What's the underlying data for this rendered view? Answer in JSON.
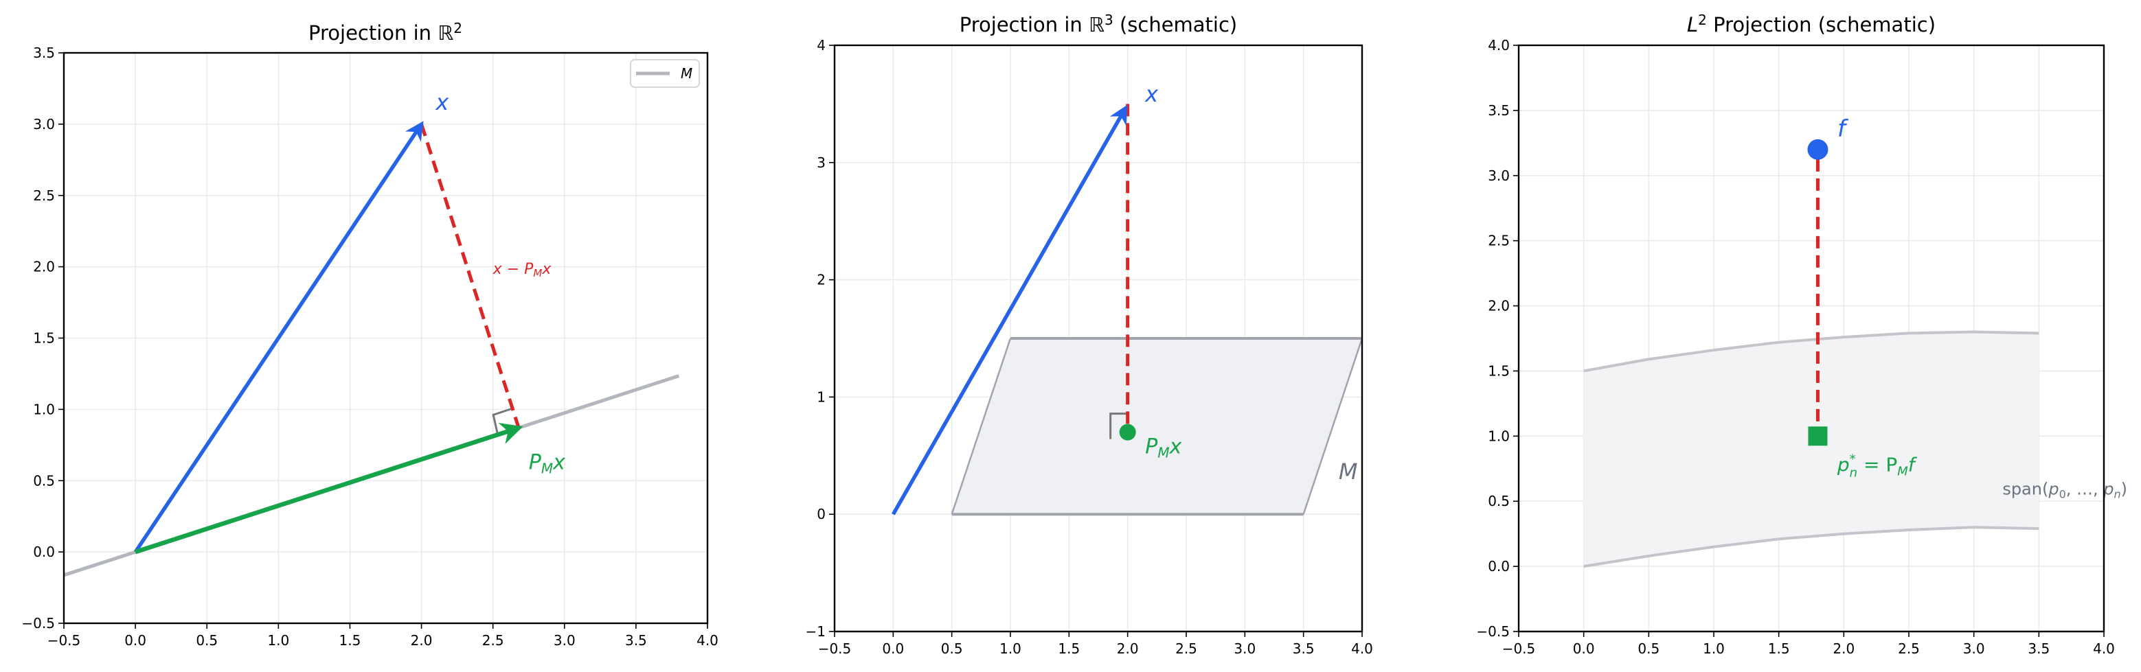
{
  "colors": {
    "blue": "#2563eb",
    "green": "#16a34a",
    "red": "#dc2626",
    "subspace": "#b4b6be",
    "plane_fill": "#eef0f3",
    "plane_edge": "#a1a4ad",
    "label_gray": "#6b7280",
    "right_angle": "#777777"
  },
  "chart_data": [
    {
      "type": "line",
      "title": "Projection in ℝ²",
      "title_main": "Projection in ",
      "title_sym": "ℝ",
      "title_sup": "2",
      "xlim": [
        -0.5,
        4.0
      ],
      "ylim": [
        -0.5,
        3.5
      ],
      "xticks": [
        "−0.5",
        "0.0",
        "0.5",
        "1.0",
        "1.5",
        "2.0",
        "2.5",
        "3.0",
        "3.5",
        "4.0"
      ],
      "yticks": [
        "−0.5",
        "0.0",
        "0.5",
        "1.0",
        "1.5",
        "2.0",
        "2.5",
        "3.0",
        "3.5"
      ],
      "grid": true,
      "legend": {
        "position": "upper right",
        "entries": [
          {
            "label": "M",
            "color": "#b4b6be"
          }
        ]
      },
      "subspace_line": {
        "name": "M",
        "x": [
          -0.5,
          3.8
        ],
        "y": [
          -0.1625,
          1.235
        ]
      },
      "vectors": [
        {
          "name": "x",
          "from": [
            0,
            0
          ],
          "to": [
            2.0,
            3.0
          ],
          "color": "#2563eb",
          "label": "x",
          "label_pos": [
            2.1,
            3.1
          ]
        },
        {
          "name": "P_M x",
          "from": [
            0,
            0
          ],
          "to": [
            2.68,
            0.87
          ],
          "color": "#16a34a",
          "label": "P",
          "label_sub": "M",
          "label_tail": "x",
          "label_pos": [
            2.75,
            0.58
          ]
        }
      ],
      "residual": {
        "from": [
          2.0,
          3.0
        ],
        "to": [
          2.68,
          0.87
        ],
        "style": "dashed",
        "color": "#dc2626",
        "label": "x − P",
        "label_sub": "M",
        "label_tail": "x",
        "label_pos": [
          2.5,
          1.95
        ]
      }
    },
    {
      "type": "line",
      "title": "Projection in ℝ³ (schematic)",
      "title_main": "Projection in ",
      "title_sym": "ℝ",
      "title_sup": "3",
      "title_tail": " (schematic)",
      "xlim": [
        -0.5,
        4.0
      ],
      "ylim": [
        -1,
        4
      ],
      "xticks": [
        "−0.5",
        "0.0",
        "0.5",
        "1.0",
        "1.5",
        "2.0",
        "2.5",
        "3.0",
        "3.5",
        "4.0"
      ],
      "yticks": [
        "−1",
        "0",
        "1",
        "2",
        "3",
        "4"
      ],
      "grid": true,
      "plane": {
        "name": "M",
        "polygon": [
          [
            0.5,
            0
          ],
          [
            3.5,
            0
          ],
          [
            4.0,
            1.5
          ],
          [
            1.0,
            1.5
          ]
        ],
        "label": "M",
        "label_pos": [
          3.8,
          0.3
        ]
      },
      "vectors": [
        {
          "name": "x",
          "from": [
            0,
            0
          ],
          "to": [
            2.0,
            3.5
          ],
          "color": "#2563eb",
          "label": "x",
          "label_pos": [
            2.15,
            3.52
          ]
        }
      ],
      "projection_point": {
        "name": "P_M x",
        "x": 2.0,
        "y": 0.7,
        "color": "#16a34a",
        "label": "P",
        "label_sub": "M",
        "label_tail": "x",
        "label_pos": [
          2.15,
          0.52
        ]
      },
      "residual": {
        "from": [
          2.0,
          3.5
        ],
        "to": [
          2.0,
          0.7
        ],
        "style": "dashed",
        "color": "#dc2626"
      }
    },
    {
      "type": "area",
      "title": "L² Projection (schematic)",
      "title_sym": "L",
      "title_sup": "2",
      "title_tail": " Projection (schematic)",
      "xlim": [
        -0.5,
        4.0
      ],
      "ylim": [
        -0.5,
        4.0
      ],
      "xticks": [
        "−0.5",
        "0.0",
        "0.5",
        "1.0",
        "1.5",
        "2.0",
        "2.5",
        "3.0",
        "3.5",
        "4.0"
      ],
      "yticks": [
        "−0.5",
        "0.0",
        "0.5",
        "1.0",
        "1.5",
        "2.0",
        "2.5",
        "3.0",
        "3.5",
        "4.0"
      ],
      "grid": true,
      "band": {
        "name": "span(p0, ..., pn)",
        "x": [
          0,
          0.5,
          1.0,
          1.5,
          2.0,
          2.5,
          3.0,
          3.5
        ],
        "upper": [
          1.5,
          1.59,
          1.66,
          1.72,
          1.76,
          1.79,
          1.8,
          1.79
        ],
        "lower": [
          0.0,
          0.08,
          0.15,
          0.21,
          0.25,
          0.28,
          0.3,
          0.29
        ],
        "label": "span(",
        "label_math": "p",
        "label_sub0": "0",
        "label_mid": ", …, ",
        "label_math2": "p",
        "label_subn": "n",
        "label_end": ")",
        "label_pos": [
          3.22,
          0.55
        ]
      },
      "function_point": {
        "name": "f",
        "x": 1.8,
        "y": 3.2,
        "color": "#2563eb",
        "label": "f",
        "label_pos": [
          1.95,
          3.3
        ]
      },
      "projection_point": {
        "name": "p_n* = P_M f",
        "x": 1.8,
        "y": 1.0,
        "marker": "square",
        "color": "#16a34a",
        "label_pos": [
          1.95,
          0.73
        ],
        "label_p": "p",
        "label_sup": "*",
        "label_sub": "n",
        "label_eq": " = P",
        "label_sub2": "M",
        "label_tail": "f"
      },
      "residual": {
        "from": [
          1.8,
          3.2
        ],
        "to": [
          1.8,
          1.0
        ],
        "style": "dashed",
        "color": "#dc2626"
      }
    }
  ]
}
